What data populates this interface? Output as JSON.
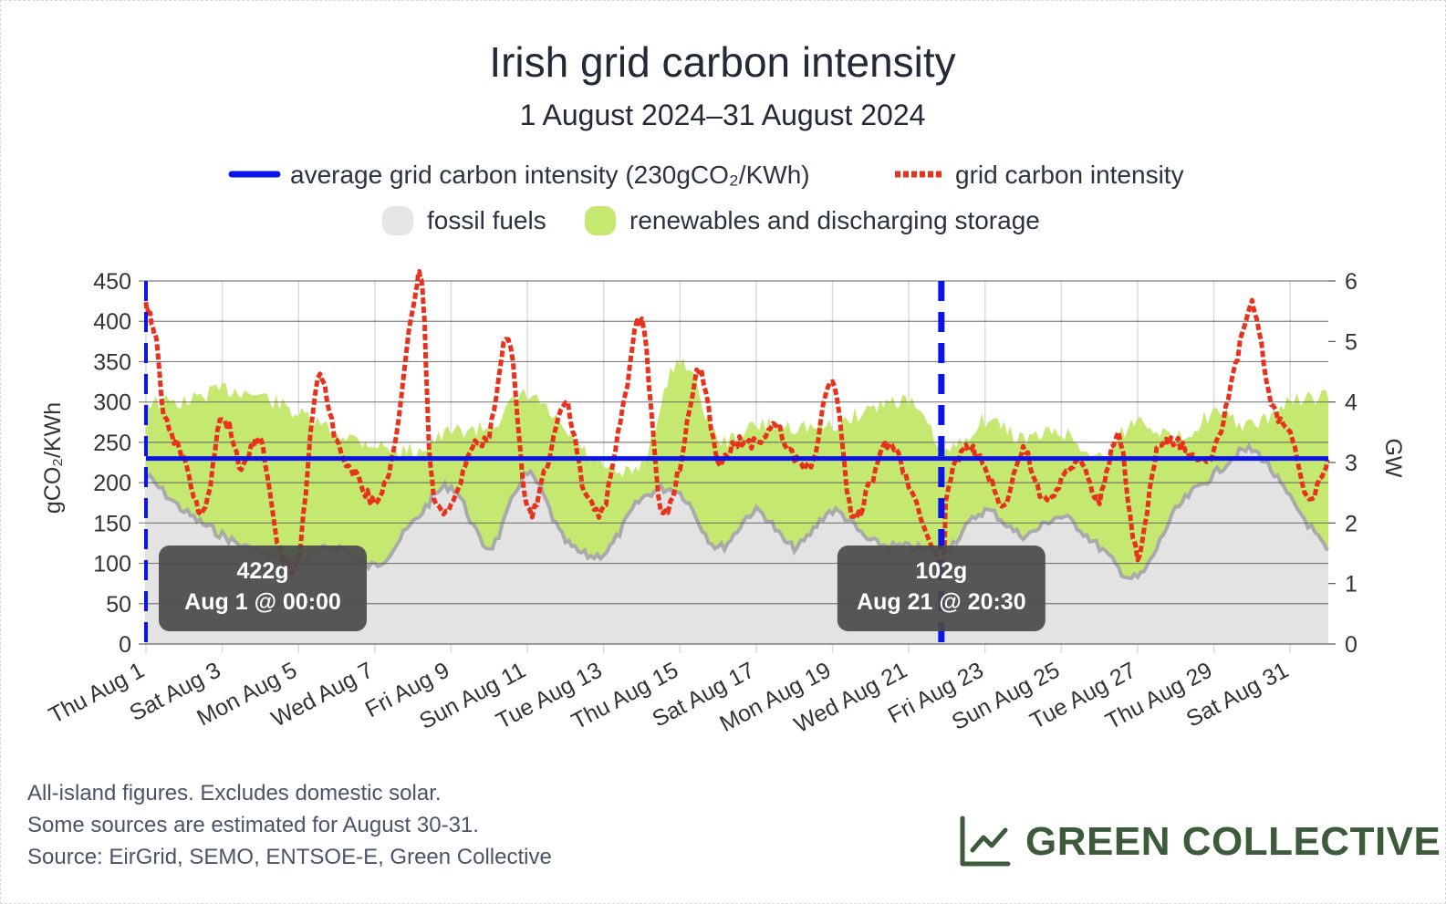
{
  "chart_data": {
    "type": "line",
    "title": "Irish grid carbon intensity",
    "subtitle": "1 August 2024–31 August 2024",
    "legend": [
      {
        "key": "avg",
        "label": "average grid carbon intensity (230gCO₂/KWh)",
        "color": "#0a14e6",
        "style": "solid-line"
      },
      {
        "key": "ci",
        "label": "grid carbon intensity",
        "color": "#e8321e",
        "style": "dashed-line"
      },
      {
        "key": "fossil",
        "label": "fossil fuels",
        "color": "#e5e5e5",
        "style": "area"
      },
      {
        "key": "renew",
        "label": "renewables and discharging storage",
        "color": "#c5e870",
        "style": "area"
      }
    ],
    "ylabel_left": "gCO₂/KWh",
    "ylabel_right": "GW",
    "ylim_left": [
      0,
      450
    ],
    "ylim_right": [
      0,
      6
    ],
    "yticks_left": [
      0,
      50,
      100,
      150,
      200,
      250,
      300,
      350,
      400,
      450
    ],
    "yticks_right": [
      0,
      1,
      2,
      3,
      4,
      5,
      6
    ],
    "x_start": "2024-08-01",
    "x_end": "2024-09-01",
    "xticks": [
      "Thu Aug 1",
      "Sat Aug 3",
      "Mon Aug 5",
      "Wed Aug 7",
      "Fri Aug 9",
      "Sun Aug 11",
      "Tue Aug 13",
      "Thu Aug 15",
      "Sat Aug 17",
      "Mon Aug 19",
      "Wed Aug 21",
      "Fri Aug 23",
      "Sun Aug 25",
      "Tue Aug 27",
      "Thu Aug 29",
      "Sat Aug 31"
    ],
    "grid": true,
    "average_intensity": 230,
    "series": [
      {
        "name": "grid carbon intensity",
        "axis": "left",
        "x": [
          "Aug 1 00:00",
          "Aug 1 06:00",
          "Aug 1 12:00",
          "Aug 2 00:00",
          "Aug 2 12:00",
          "Aug 3 00:00",
          "Aug 3 12:00",
          "Aug 4 00:00",
          "Aug 4 12:00",
          "Aug 5 00:00",
          "Aug 5 12:00",
          "Aug 6 00:00",
          "Aug 6 12:00",
          "Aug 7 00:00",
          "Aug 7 12:00",
          "Aug 8 00:00",
          "Aug 8 06:00",
          "Aug 8 12:00",
          "Aug 9 00:00",
          "Aug 9 12:00",
          "Aug 10 00:00",
          "Aug 10 12:00",
          "Aug 11 00:00",
          "Aug 11 12:00",
          "Aug 12 00:00",
          "Aug 12 12:00",
          "Aug 13 00:00",
          "Aug 13 12:00",
          "Aug 14 00:00",
          "Aug 14 12:00",
          "Aug 15 00:00",
          "Aug 15 12:00",
          "Aug 16 00:00",
          "Aug 16 12:00",
          "Aug 17 00:00",
          "Aug 17 12:00",
          "Aug 18 00:00",
          "Aug 18 12:00",
          "Aug 19 00:00",
          "Aug 19 12:00",
          "Aug 20 00:00",
          "Aug 20 12:00",
          "Aug 21 00:00",
          "Aug 21 20:30",
          "Aug 22 00:00",
          "Aug 22 12:00",
          "Aug 23 00:00",
          "Aug 23 12:00",
          "Aug 24 00:00",
          "Aug 24 12:00",
          "Aug 25 00:00",
          "Aug 25 12:00",
          "Aug 26 00:00",
          "Aug 26 12:00",
          "Aug 27 00:00",
          "Aug 27 12:00",
          "Aug 28 00:00",
          "Aug 28 12:00",
          "Aug 29 00:00",
          "Aug 29 12:00",
          "Aug 30 00:00",
          "Aug 30 12:00",
          "Aug 31 00:00",
          "Aug 31 12:00",
          "Aug 31 23:30"
        ],
        "y": [
          422,
          380,
          280,
          230,
          160,
          280,
          220,
          250,
          120,
          110,
          330,
          250,
          210,
          180,
          240,
          420,
          440,
          200,
          170,
          240,
          260,
          380,
          170,
          220,
          300,
          190,
          170,
          290,
          400,
          170,
          220,
          340,
          230,
          250,
          250,
          270,
          230,
          230,
          330,
          160,
          200,
          250,
          200,
          102,
          190,
          240,
          220,
          170,
          240,
          180,
          200,
          230,
          180,
          260,
          110,
          240,
          250,
          230,
          240,
          330,
          420,
          300,
          260,
          180,
          230
        ]
      },
      {
        "name": "fossil fuels",
        "axis": "right",
        "x": [
          "Aug 1",
          "Aug 2",
          "Aug 3",
          "Aug 4",
          "Aug 5",
          "Aug 6",
          "Aug 7",
          "Aug 8",
          "Aug 9",
          "Aug 10",
          "Aug 11",
          "Aug 12",
          "Aug 13",
          "Aug 14",
          "Aug 15",
          "Aug 16",
          "Aug 17",
          "Aug 18",
          "Aug 19",
          "Aug 20",
          "Aug 21",
          "Aug 22",
          "Aug 23",
          "Aug 24",
          "Aug 25",
          "Aug 26",
          "Aug 27",
          "Aug 28",
          "Aug 29",
          "Aug 30",
          "Aug 31",
          "Sep 1"
        ],
        "y": [
          2.8,
          2.2,
          1.8,
          1.5,
          1.4,
          1.6,
          1.3,
          2.0,
          2.6,
          1.6,
          2.8,
          1.7,
          1.5,
          2.4,
          2.5,
          1.6,
          2.2,
          1.6,
          2.2,
          1.7,
          1.6,
          1.6,
          2.2,
          1.8,
          2.1,
          1.6,
          1.1,
          2.2,
          2.8,
          3.2,
          2.4,
          1.5
        ]
      },
      {
        "name": "renewables and discharging storage",
        "axis": "right",
        "x": [
          "Aug 1",
          "Aug 2",
          "Aug 3",
          "Aug 4",
          "Aug 5",
          "Aug 6",
          "Aug 7",
          "Aug 8",
          "Aug 9",
          "Aug 10",
          "Aug 11",
          "Aug 12",
          "Aug 13",
          "Aug 14",
          "Aug 15",
          "Aug 16",
          "Aug 17",
          "Aug 18",
          "Aug 19",
          "Aug 20",
          "Aug 21",
          "Aug 22",
          "Aug 23",
          "Aug 24",
          "Aug 25",
          "Aug 26",
          "Aug 27",
          "Aug 28",
          "Aug 29",
          "Aug 30",
          "Aug 31",
          "Sep 1"
        ],
        "y": [
          1.2,
          1.8,
          2.4,
          2.6,
          2.4,
          1.9,
          2.0,
          1.2,
          0.9,
          2.0,
          1.3,
          1.8,
          1.4,
          0.6,
          2.2,
          1.8,
          1.4,
          2.0,
          1.4,
          2.2,
          2.4,
          1.6,
          1.5,
          1.6,
          1.4,
          1.5,
          2.6,
          1.2,
          1.0,
          0.4,
          1.6,
          2.6
        ]
      }
    ],
    "annotations": [
      {
        "value": "422g",
        "time": "Aug 1 @ 00:00",
        "x": "2024-08-01 00:00"
      },
      {
        "value": "102g",
        "time": "Aug 21 @ 20:30",
        "x": "2024-08-21 20:30"
      }
    ]
  },
  "footer": {
    "line1": "All-island figures. Excludes domestic solar.",
    "line2": "Some sources are estimated for August 30-31.",
    "line3": "Source: EirGrid, SEMO, ENTSOE-E, Green Collective"
  },
  "brand": {
    "name": "GREEN COLLECTIVE",
    "icon": "line-chart-icon",
    "color": "#3d5a3a"
  }
}
